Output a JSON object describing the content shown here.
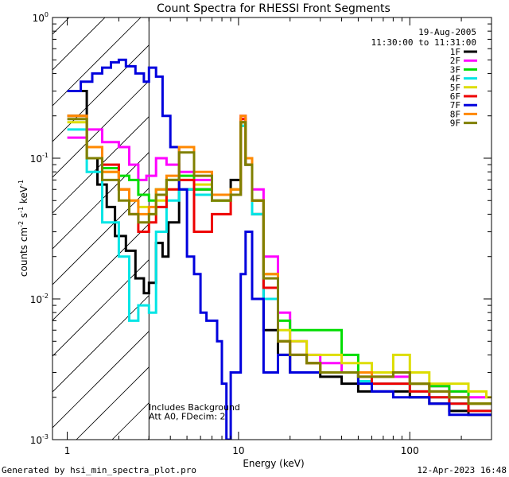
{
  "chart_data": {
    "type": "line",
    "title": "Count Spectra for RHESSI Front Segments",
    "xlabel": "Energy (keV)",
    "ylabel_parts": [
      "counts cm",
      "-2",
      " s",
      "-1",
      " keV",
      "-1"
    ],
    "xscale": "log",
    "yscale": "log",
    "xlim": [
      1.0,
      2.7,
      300
    ],
    "xlim_note": "",
    "x_range": [
      0.82,
      300
    ],
    "y_range": [
      0.001,
      1.0
    ],
    "x_ticks": [
      {
        "value": 1,
        "label": "1"
      },
      {
        "value": 10,
        "label": "10"
      },
      {
        "value": 100,
        "label": "100"
      }
    ],
    "y_ticks": [
      {
        "value": 1,
        "base": "10",
        "exp": "0"
      },
      {
        "value": 0.1,
        "base": "10",
        "exp": "-1"
      },
      {
        "value": 0.01,
        "base": "10",
        "exp": "-2"
      },
      {
        "value": 0.001,
        "base": "10",
        "exp": "-3"
      }
    ],
    "hatch_region": {
      "x_min": 0.82,
      "x_max": 3.0
    },
    "date_label": "19-Aug-2005",
    "time_label": "11:30:00 to 11:31:00",
    "legend_position": "top-right",
    "annotations": [
      "Includes Background",
      "Att A0, FDecim: 2"
    ],
    "series": [
      {
        "name": "1F",
        "color": "#000000",
        "points": [
          [
            1.0,
            0.3
          ],
          [
            1.3,
            0.1
          ],
          [
            1.5,
            0.065
          ],
          [
            1.7,
            0.045
          ],
          [
            1.9,
            0.028
          ],
          [
            2.2,
            0.022
          ],
          [
            2.5,
            0.014
          ],
          [
            2.8,
            0.011
          ],
          [
            3.0,
            0.013
          ],
          [
            3.3,
            0.025
          ],
          [
            3.6,
            0.02
          ],
          [
            3.9,
            0.035
          ],
          [
            4.5,
            0.06
          ],
          [
            5.5,
            0.06
          ],
          [
            7,
            0.05
          ],
          [
            9,
            0.07
          ],
          [
            10.3,
            0.18
          ],
          [
            11,
            0.09
          ],
          [
            12,
            0.04
          ],
          [
            14,
            0.006
          ],
          [
            17,
            0.004
          ],
          [
            20,
            0.003
          ],
          [
            25,
            0.003
          ],
          [
            30,
            0.0028
          ],
          [
            40,
            0.0025
          ],
          [
            50,
            0.0022
          ],
          [
            60,
            0.0022
          ],
          [
            80,
            0.0022
          ],
          [
            100,
            0.002
          ],
          [
            130,
            0.0018
          ],
          [
            170,
            0.0016
          ],
          [
            220,
            0.0015
          ],
          [
            280,
            0.0015
          ]
        ]
      },
      {
        "name": "2F",
        "color": "#ff00ff",
        "points": [
          [
            1.0,
            0.14
          ],
          [
            1.3,
            0.16
          ],
          [
            1.6,
            0.13
          ],
          [
            2.0,
            0.12
          ],
          [
            2.3,
            0.09
          ],
          [
            2.6,
            0.07
          ],
          [
            2.9,
            0.075
          ],
          [
            3.3,
            0.1
          ],
          [
            3.8,
            0.09
          ],
          [
            4.5,
            0.08
          ],
          [
            5.5,
            0.07
          ],
          [
            7,
            0.055
          ],
          [
            9,
            0.06
          ],
          [
            10.3,
            0.2
          ],
          [
            11,
            0.1
          ],
          [
            12,
            0.06
          ],
          [
            14,
            0.02
          ],
          [
            17,
            0.008
          ],
          [
            20,
            0.005
          ],
          [
            25,
            0.004
          ],
          [
            30,
            0.0035
          ],
          [
            40,
            0.003
          ],
          [
            50,
            0.003
          ],
          [
            60,
            0.0028
          ],
          [
            80,
            0.0028
          ],
          [
            100,
            0.0025
          ],
          [
            130,
            0.0024
          ],
          [
            170,
            0.0022
          ],
          [
            220,
            0.002
          ],
          [
            280,
            0.002
          ]
        ]
      },
      {
        "name": "3F",
        "color": "#00dd00",
        "points": [
          [
            1.0,
            0.2
          ],
          [
            1.3,
            0.12
          ],
          [
            1.6,
            0.085
          ],
          [
            2.0,
            0.075
          ],
          [
            2.3,
            0.07
          ],
          [
            2.6,
            0.055
          ],
          [
            3.0,
            0.05
          ],
          [
            3.3,
            0.06
          ],
          [
            3.8,
            0.07
          ],
          [
            4.5,
            0.075
          ],
          [
            5.5,
            0.06
          ],
          [
            7,
            0.05
          ],
          [
            9,
            0.06
          ],
          [
            10.3,
            0.17
          ],
          [
            11,
            0.09
          ],
          [
            12,
            0.05
          ],
          [
            14,
            0.015
          ],
          [
            17,
            0.007
          ],
          [
            20,
            0.006
          ],
          [
            25,
            0.006
          ],
          [
            30,
            0.006
          ],
          [
            40,
            0.004
          ],
          [
            50,
            0.003
          ],
          [
            60,
            0.003
          ],
          [
            80,
            0.003
          ],
          [
            100,
            0.0025
          ],
          [
            130,
            0.0024
          ],
          [
            170,
            0.0022
          ],
          [
            220,
            0.0018
          ],
          [
            280,
            0.0018
          ]
        ]
      },
      {
        "name": "4F",
        "color": "#00e5e5",
        "points": [
          [
            1.0,
            0.16
          ],
          [
            1.3,
            0.08
          ],
          [
            1.6,
            0.035
          ],
          [
            2.0,
            0.02
          ],
          [
            2.3,
            0.007
          ],
          [
            2.6,
            0.009
          ],
          [
            3.0,
            0.008
          ],
          [
            3.3,
            0.03
          ],
          [
            3.8,
            0.05
          ],
          [
            4.5,
            0.06
          ],
          [
            5.5,
            0.055
          ],
          [
            7,
            0.05
          ],
          [
            9,
            0.055
          ],
          [
            10.3,
            0.17
          ],
          [
            11,
            0.09
          ],
          [
            12,
            0.04
          ],
          [
            14,
            0.01
          ],
          [
            17,
            0.005
          ],
          [
            20,
            0.004
          ],
          [
            25,
            0.0035
          ],
          [
            30,
            0.003
          ],
          [
            40,
            0.003
          ],
          [
            50,
            0.0026
          ],
          [
            60,
            0.0025
          ],
          [
            80,
            0.0025
          ],
          [
            100,
            0.0022
          ],
          [
            130,
            0.002
          ],
          [
            170,
            0.0018
          ],
          [
            220,
            0.0016
          ],
          [
            280,
            0.0016
          ]
        ]
      },
      {
        "name": "5F",
        "color": "#dddd00",
        "points": [
          [
            1.0,
            0.18
          ],
          [
            1.3,
            0.1
          ],
          [
            1.6,
            0.08
          ],
          [
            2.0,
            0.06
          ],
          [
            2.3,
            0.05
          ],
          [
            2.6,
            0.045
          ],
          [
            3.0,
            0.04
          ],
          [
            3.3,
            0.05
          ],
          [
            3.8,
            0.06
          ],
          [
            4.5,
            0.07
          ],
          [
            5.5,
            0.065
          ],
          [
            7,
            0.05
          ],
          [
            9,
            0.06
          ],
          [
            10.3,
            0.18
          ],
          [
            11,
            0.1
          ],
          [
            12,
            0.05
          ],
          [
            14,
            0.015
          ],
          [
            17,
            0.006
          ],
          [
            20,
            0.005
          ],
          [
            25,
            0.004
          ],
          [
            30,
            0.004
          ],
          [
            40,
            0.0035
          ],
          [
            50,
            0.0035
          ],
          [
            60,
            0.003
          ],
          [
            80,
            0.004
          ],
          [
            100,
            0.003
          ],
          [
            130,
            0.0025
          ],
          [
            170,
            0.0025
          ],
          [
            220,
            0.0022
          ],
          [
            280,
            0.002
          ]
        ]
      },
      {
        "name": "6F",
        "color": "#ee0000",
        "points": [
          [
            1.0,
            0.2
          ],
          [
            1.3,
            0.12
          ],
          [
            1.6,
            0.09
          ],
          [
            2.0,
            0.06
          ],
          [
            2.3,
            0.04
          ],
          [
            2.6,
            0.03
          ],
          [
            3.0,
            0.035
          ],
          [
            3.3,
            0.045
          ],
          [
            3.8,
            0.06
          ],
          [
            4.5,
            0.07
          ],
          [
            5.5,
            0.03
          ],
          [
            7,
            0.04
          ],
          [
            9,
            0.055
          ],
          [
            10.3,
            0.19
          ],
          [
            11,
            0.09
          ],
          [
            12,
            0.05
          ],
          [
            14,
            0.012
          ],
          [
            17,
            0.005
          ],
          [
            20,
            0.004
          ],
          [
            25,
            0.0035
          ],
          [
            30,
            0.003
          ],
          [
            40,
            0.003
          ],
          [
            50,
            0.0028
          ],
          [
            60,
            0.0025
          ],
          [
            80,
            0.0025
          ],
          [
            100,
            0.0022
          ],
          [
            130,
            0.002
          ],
          [
            170,
            0.0018
          ],
          [
            220,
            0.0016
          ],
          [
            280,
            0.0016
          ]
        ]
      },
      {
        "name": "7F",
        "color": "#0000dd",
        "points": [
          [
            1.0,
            0.3
          ],
          [
            1.2,
            0.35
          ],
          [
            1.4,
            0.4
          ],
          [
            1.6,
            0.44
          ],
          [
            1.8,
            0.48
          ],
          [
            2.0,
            0.5
          ],
          [
            2.2,
            0.45
          ],
          [
            2.5,
            0.4
          ],
          [
            2.8,
            0.35
          ],
          [
            3.0,
            0.44
          ],
          [
            3.3,
            0.38
          ],
          [
            3.6,
            0.2
          ],
          [
            4.0,
            0.12
          ],
          [
            4.5,
            0.06
          ],
          [
            5.0,
            0.02
          ],
          [
            5.5,
            0.015
          ],
          [
            6.0,
            0.008
          ],
          [
            6.5,
            0.007
          ],
          [
            7.0,
            0.007
          ],
          [
            7.5,
            0.005
          ],
          [
            8.0,
            0.0025
          ],
          [
            8.5,
            0.001
          ],
          [
            9.0,
            0.003
          ],
          [
            10.3,
            0.015
          ],
          [
            11,
            0.03
          ],
          [
            12,
            0.01
          ],
          [
            14,
            0.003
          ],
          [
            17,
            0.004
          ],
          [
            20,
            0.003
          ],
          [
            25,
            0.003
          ],
          [
            30,
            0.003
          ],
          [
            40,
            0.003
          ],
          [
            50,
            0.0025
          ],
          [
            60,
            0.0022
          ],
          [
            80,
            0.002
          ],
          [
            100,
            0.002
          ],
          [
            130,
            0.0018
          ],
          [
            170,
            0.0015
          ],
          [
            220,
            0.0015
          ],
          [
            280,
            0.0015
          ]
        ]
      },
      {
        "name": "8F",
        "color": "#ff8800",
        "points": [
          [
            1.0,
            0.2
          ],
          [
            1.3,
            0.12
          ],
          [
            1.6,
            0.08
          ],
          [
            2.0,
            0.06
          ],
          [
            2.3,
            0.05
          ],
          [
            2.6,
            0.04
          ],
          [
            3.0,
            0.045
          ],
          [
            3.3,
            0.06
          ],
          [
            3.8,
            0.075
          ],
          [
            4.5,
            0.12
          ],
          [
            5.5,
            0.08
          ],
          [
            7,
            0.055
          ],
          [
            9,
            0.06
          ],
          [
            10.3,
            0.2
          ],
          [
            11,
            0.1
          ],
          [
            12,
            0.05
          ],
          [
            14,
            0.015
          ],
          [
            17,
            0.005
          ],
          [
            20,
            0.004
          ],
          [
            25,
            0.0035
          ],
          [
            30,
            0.003
          ],
          [
            40,
            0.003
          ],
          [
            50,
            0.003
          ],
          [
            60,
            0.0028
          ],
          [
            80,
            0.003
          ],
          [
            100,
            0.0025
          ],
          [
            130,
            0.0022
          ],
          [
            170,
            0.002
          ],
          [
            220,
            0.0018
          ],
          [
            280,
            0.0018
          ]
        ]
      },
      {
        "name": "9F",
        "color": "#808000",
        "points": [
          [
            1.0,
            0.19
          ],
          [
            1.3,
            0.1
          ],
          [
            1.6,
            0.07
          ],
          [
            2.0,
            0.05
          ],
          [
            2.3,
            0.04
          ],
          [
            2.6,
            0.035
          ],
          [
            3.0,
            0.04
          ],
          [
            3.3,
            0.055
          ],
          [
            3.8,
            0.07
          ],
          [
            4.5,
            0.11
          ],
          [
            5.5,
            0.075
          ],
          [
            7,
            0.05
          ],
          [
            9,
            0.055
          ],
          [
            10.3,
            0.18
          ],
          [
            11,
            0.09
          ],
          [
            12,
            0.05
          ],
          [
            14,
            0.014
          ],
          [
            17,
            0.005
          ],
          [
            20,
            0.004
          ],
          [
            25,
            0.0035
          ],
          [
            30,
            0.003
          ],
          [
            40,
            0.003
          ],
          [
            50,
            0.0028
          ],
          [
            60,
            0.0028
          ],
          [
            80,
            0.003
          ],
          [
            100,
            0.0025
          ],
          [
            130,
            0.0022
          ],
          [
            170,
            0.002
          ],
          [
            220,
            0.0018
          ],
          [
            280,
            0.0018
          ]
        ]
      }
    ]
  },
  "footer": {
    "generated_by": "Generated by hsi_min_spectra_plot.pro",
    "timestamp": "12-Apr-2023 16:48"
  }
}
